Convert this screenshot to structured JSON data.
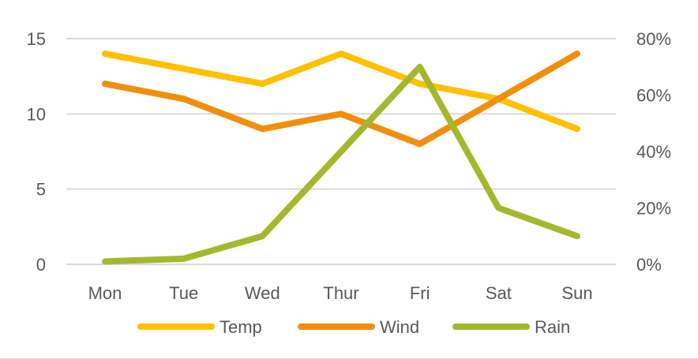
{
  "chart_data": {
    "type": "line",
    "categories": [
      "Mon",
      "Tue",
      "Wed",
      "Thur",
      "Fri",
      "Sat",
      "Sun"
    ],
    "left_axis": {
      "ticks": [
        "15",
        "10",
        "5",
        "0"
      ],
      "ylim": [
        0,
        15
      ]
    },
    "right_axis": {
      "ticks": [
        "80%",
        "60%",
        "40%",
        "20%",
        "0%"
      ],
      "ylim": [
        0,
        0.8
      ]
    },
    "grid": true,
    "legend_position": "bottom",
    "series": [
      {
        "name": "Temp",
        "axis": "left",
        "values": [
          14,
          13,
          12,
          14,
          12,
          11,
          9
        ],
        "color": "#FFC000"
      },
      {
        "name": "Wind",
        "axis": "left",
        "values": [
          12,
          11,
          9,
          10,
          8,
          11,
          14
        ],
        "color": "#F28E0C"
      },
      {
        "name": "Rain",
        "axis": "right",
        "values": [
          0.01,
          0.02,
          0.1,
          0.4,
          0.7,
          0.2,
          0.1
        ],
        "color": "#A5B82D"
      }
    ]
  }
}
